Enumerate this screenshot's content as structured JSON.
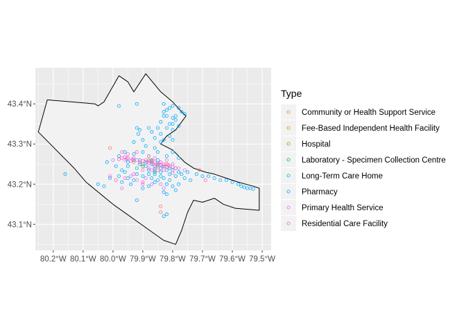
{
  "chart_data": {
    "type": "scatter",
    "x_unit": "longitude",
    "y_unit": "latitude",
    "xlim": [
      -80.26,
      -79.47
    ],
    "ylim": [
      43.035,
      43.49
    ],
    "x_ticks": [
      {
        "value": -80.2,
        "label": "80.2°W"
      },
      {
        "value": -80.1,
        "label": "80.1°W"
      },
      {
        "value": -80.0,
        "label": "80.0°W"
      },
      {
        "value": -79.9,
        "label": "79.9°W"
      },
      {
        "value": -79.8,
        "label": "79.8°W"
      },
      {
        "value": -79.7,
        "label": "79.7°W"
      },
      {
        "value": -79.6,
        "label": "79.6°W"
      },
      {
        "value": -79.5,
        "label": "79.5°W"
      }
    ],
    "y_ticks": [
      {
        "value": 43.1,
        "label": "43.1°N"
      },
      {
        "value": 43.2,
        "label": "43.2°N"
      },
      {
        "value": 43.3,
        "label": "43.3°N"
      },
      {
        "value": 43.4,
        "label": "43.4°N"
      }
    ],
    "grid": true,
    "legend_position": "right",
    "legend_title": "Type",
    "boundary": [
      [
        -80.25,
        43.33
      ],
      [
        -80.22,
        43.41
      ],
      [
        -80.06,
        43.4
      ],
      [
        -80.05,
        43.395
      ],
      [
        -80.03,
        43.405
      ],
      [
        -79.98,
        43.47
      ],
      [
        -79.95,
        43.455
      ],
      [
        -79.93,
        43.43
      ],
      [
        -79.89,
        43.475
      ],
      [
        -79.84,
        43.43
      ],
      [
        -79.8,
        43.405
      ],
      [
        -79.77,
        43.38
      ],
      [
        -79.755,
        43.37
      ],
      [
        -79.79,
        43.335
      ],
      [
        -79.82,
        43.32
      ],
      [
        -79.84,
        43.3
      ],
      [
        -79.8,
        43.285
      ],
      [
        -79.78,
        43.27
      ],
      [
        -79.76,
        43.255
      ],
      [
        -79.73,
        43.24
      ],
      [
        -79.69,
        43.23
      ],
      [
        -79.66,
        43.225
      ],
      [
        -79.62,
        43.215
      ],
      [
        -79.58,
        43.205
      ],
      [
        -79.53,
        43.195
      ],
      [
        -79.51,
        43.19
      ],
      [
        -79.51,
        43.135
      ],
      [
        -79.59,
        43.14
      ],
      [
        -79.63,
        43.15
      ],
      [
        -79.66,
        43.165
      ],
      [
        -79.7,
        43.155
      ],
      [
        -79.73,
        43.16
      ],
      [
        -79.75,
        43.13
      ],
      [
        -79.77,
        43.085
      ],
      [
        -79.79,
        43.05
      ],
      [
        -79.83,
        43.06
      ],
      [
        -80.0,
        43.15
      ],
      [
        -80.09,
        43.205
      ],
      [
        -80.13,
        43.24
      ],
      [
        -80.25,
        43.33
      ]
    ],
    "series": [
      {
        "name": "Community or Health Support Service",
        "color": "#F8766D",
        "points": [
          [
            -80.01,
            43.29
          ],
          [
            -79.84,
            43.145
          ],
          [
            -79.84,
            43.13
          ],
          [
            -79.93,
            43.255
          ],
          [
            -79.9,
            43.25
          ],
          [
            -79.79,
            43.24
          ],
          [
            -79.71,
            43.235
          ]
        ]
      },
      {
        "name": "Fee-Based Independent Health Facility",
        "color": "#CD9600",
        "points": [
          [
            -79.87,
            43.258
          ],
          [
            -79.82,
            43.25
          ]
        ]
      },
      {
        "name": "Hospital",
        "color": "#7CAE00",
        "points": [
          [
            -79.88,
            43.26
          ],
          [
            -79.85,
            43.245
          ]
        ]
      },
      {
        "name": "Laboratory - Specimen Collection Centre",
        "color": "#00BE67",
        "points": [
          [
            -79.9,
            43.245
          ],
          [
            -79.86,
            43.23
          ]
        ]
      },
      {
        "name": "Long-Term Care Home",
        "color": "#00BFC4",
        "points": [
          [
            -79.85,
            43.25
          ],
          [
            -79.92,
            43.24
          ]
        ]
      },
      {
        "name": "Pharmacy",
        "color": "#00A9FF",
        "points": [
          [
            -79.98,
            43.395
          ],
          [
            -79.92,
            43.4
          ],
          [
            -79.83,
            43.4
          ],
          [
            -79.82,
            43.385
          ],
          [
            -79.81,
            43.39
          ],
          [
            -79.8,
            43.395
          ],
          [
            -79.78,
            43.39
          ],
          [
            -79.77,
            43.38
          ],
          [
            -79.76,
            43.375
          ],
          [
            -79.83,
            43.37
          ],
          [
            -79.8,
            43.365
          ],
          [
            -79.79,
            43.36
          ],
          [
            -79.81,
            43.35
          ],
          [
            -79.78,
            43.345
          ],
          [
            -79.8,
            43.335
          ],
          [
            -79.82,
            43.34
          ],
          [
            -79.84,
            43.355
          ],
          [
            -79.85,
            43.34
          ],
          [
            -79.88,
            43.34
          ],
          [
            -79.87,
            43.33
          ],
          [
            -79.91,
            43.335
          ],
          [
            -79.915,
            43.325
          ],
          [
            -79.86,
            43.315
          ],
          [
            -79.83,
            43.31
          ],
          [
            -79.81,
            43.32
          ],
          [
            -79.89,
            43.295
          ],
          [
            -79.86,
            43.29
          ],
          [
            -79.84,
            43.305
          ],
          [
            -79.93,
            43.305
          ],
          [
            -79.96,
            43.28
          ],
          [
            -79.98,
            43.27
          ],
          [
            -79.95,
            43.265
          ],
          [
            -79.93,
            43.26
          ],
          [
            -79.91,
            43.26
          ],
          [
            -79.89,
            43.255
          ],
          [
            -79.87,
            43.25
          ],
          [
            -79.86,
            43.245
          ],
          [
            -79.84,
            43.24
          ],
          [
            -79.83,
            43.245
          ],
          [
            -79.81,
            43.24
          ],
          [
            -79.8,
            43.235
          ],
          [
            -79.78,
            43.23
          ],
          [
            -79.77,
            43.225
          ],
          [
            -79.75,
            43.23
          ],
          [
            -79.72,
            43.225
          ],
          [
            -79.7,
            43.22
          ],
          [
            -79.68,
            43.22
          ],
          [
            -79.66,
            43.215
          ],
          [
            -79.64,
            43.21
          ],
          [
            -79.62,
            43.21
          ],
          [
            -79.6,
            43.205
          ],
          [
            -79.58,
            43.2
          ],
          [
            -79.57,
            43.195
          ],
          [
            -79.56,
            43.192
          ],
          [
            -79.55,
            43.19
          ],
          [
            -79.54,
            43.19
          ],
          [
            -79.53,
            43.188
          ],
          [
            -80.16,
            43.225
          ],
          [
            -80.05,
            43.2
          ],
          [
            -80.03,
            43.195
          ],
          [
            -80.01,
            43.215
          ],
          [
            -79.98,
            43.22
          ],
          [
            -79.96,
            43.23
          ],
          [
            -79.95,
            43.215
          ],
          [
            -79.93,
            43.21
          ],
          [
            -79.92,
            43.225
          ],
          [
            -79.9,
            43.22
          ],
          [
            -79.88,
            43.225
          ],
          [
            -79.87,
            43.215
          ],
          [
            -79.86,
            43.205
          ],
          [
            -79.85,
            43.21
          ],
          [
            -79.84,
            43.22
          ],
          [
            -79.83,
            43.215
          ],
          [
            -79.82,
            43.2
          ],
          [
            -79.81,
            43.21
          ],
          [
            -79.8,
            43.195
          ],
          [
            -79.79,
            43.185
          ],
          [
            -79.82,
            43.175
          ],
          [
            -79.83,
            43.18
          ],
          [
            -79.88,
            43.195
          ],
          [
            -79.9,
            43.19
          ],
          [
            -79.94,
            43.2
          ],
          [
            -79.97,
            43.205
          ],
          [
            -79.92,
            43.16
          ],
          [
            -79.82,
            43.125
          ],
          [
            -79.83,
            43.12
          ],
          [
            -79.78,
            43.2
          ],
          [
            -79.76,
            43.215
          ],
          [
            -79.9,
            43.28
          ],
          [
            -79.85,
            43.28
          ],
          [
            -79.82,
            43.27
          ],
          [
            -79.8,
            43.28
          ],
          [
            -79.78,
            43.265
          ],
          [
            -79.88,
            43.27
          ],
          [
            -79.93,
            43.275
          ],
          [
            -79.95,
            43.255
          ],
          [
            -79.99,
            43.245
          ],
          [
            -80.02,
            43.255
          ],
          [
            -79.86,
            43.235
          ],
          [
            -79.84,
            43.23
          ],
          [
            -79.82,
            43.235
          ],
          [
            -79.87,
            43.26
          ],
          [
            -79.85,
            43.26
          ],
          [
            -79.89,
            43.245
          ],
          [
            -79.91,
            43.25
          ],
          [
            -79.95,
            43.245
          ],
          [
            -79.97,
            43.235
          ],
          [
            -79.88,
            43.235
          ],
          [
            -79.86,
            43.225
          ],
          [
            -79.81,
            43.225
          ],
          [
            -79.79,
            43.22
          ],
          [
            -79.74,
            43.21
          ],
          [
            -79.83,
            43.38
          ],
          [
            -79.82,
            43.37
          ],
          [
            -79.79,
            43.37
          ],
          [
            -79.8,
            43.35
          ],
          [
            -79.84,
            43.325
          ],
          [
            -79.8,
            43.31
          ],
          [
            -79.9,
            43.31
          ],
          [
            -79.92,
            43.34
          ]
        ]
      },
      {
        "name": "Primary Health Service",
        "color": "#C77CFF",
        "points": [
          [
            -80.0,
            43.26
          ],
          [
            -79.96,
            43.26
          ],
          [
            -79.92,
            43.21
          ],
          [
            -79.89,
            43.215
          ],
          [
            -79.86,
            43.24
          ],
          [
            -79.84,
            43.255
          ],
          [
            -79.82,
            43.26
          ],
          [
            -79.8,
            43.25
          ],
          [
            -79.78,
            43.24
          ],
          [
            -79.76,
            43.235
          ],
          [
            -79.84,
            43.2
          ],
          [
            -79.87,
            43.2
          ],
          [
            -79.9,
            43.205
          ],
          [
            -79.94,
            43.22
          ],
          [
            -79.97,
            43.19
          ],
          [
            -79.83,
            43.19
          ]
        ]
      },
      {
        "name": "Residential Care Facility",
        "color": "#FF61CC",
        "points": [
          [
            -79.98,
            43.262
          ],
          [
            -79.97,
            43.265
          ],
          [
            -79.96,
            43.268
          ],
          [
            -79.955,
            43.263
          ],
          [
            -79.95,
            43.265
          ],
          [
            -79.94,
            43.258
          ],
          [
            -79.935,
            43.262
          ],
          [
            -79.93,
            43.265
          ],
          [
            -79.92,
            43.26
          ],
          [
            -79.91,
            43.255
          ],
          [
            -79.9,
            43.258
          ],
          [
            -79.89,
            43.26
          ],
          [
            -79.885,
            43.255
          ],
          [
            -79.88,
            43.252
          ],
          [
            -79.875,
            43.258
          ],
          [
            -79.87,
            43.255
          ],
          [
            -79.865,
            43.25
          ],
          [
            -79.86,
            43.255
          ],
          [
            -79.855,
            43.25
          ],
          [
            -79.85,
            43.248
          ],
          [
            -79.845,
            43.252
          ],
          [
            -79.84,
            43.248
          ],
          [
            -79.835,
            43.245
          ],
          [
            -79.83,
            43.25
          ],
          [
            -79.825,
            43.245
          ],
          [
            -79.82,
            43.243
          ],
          [
            -79.815,
            43.248
          ],
          [
            -79.81,
            43.245
          ],
          [
            -79.8,
            43.243
          ],
          [
            -79.79,
            43.24
          ],
          [
            -79.95,
            43.275
          ],
          [
            -79.97,
            43.28
          ],
          [
            -79.92,
            43.28
          ],
          [
            -79.88,
            43.27
          ],
          [
            -79.86,
            43.265
          ],
          [
            -79.9,
            43.235
          ],
          [
            -79.88,
            43.24
          ],
          [
            -79.87,
            43.235
          ],
          [
            -79.85,
            43.235
          ],
          [
            -79.83,
            43.235
          ],
          [
            -79.8,
            43.228
          ],
          [
            -79.69,
            43.21
          ],
          [
            -80.01,
            43.22
          ],
          [
            -79.99,
            43.21
          ],
          [
            -79.96,
            43.215
          ],
          [
            -79.93,
            43.225
          ],
          [
            -79.9,
            43.2
          ]
        ]
      }
    ]
  }
}
